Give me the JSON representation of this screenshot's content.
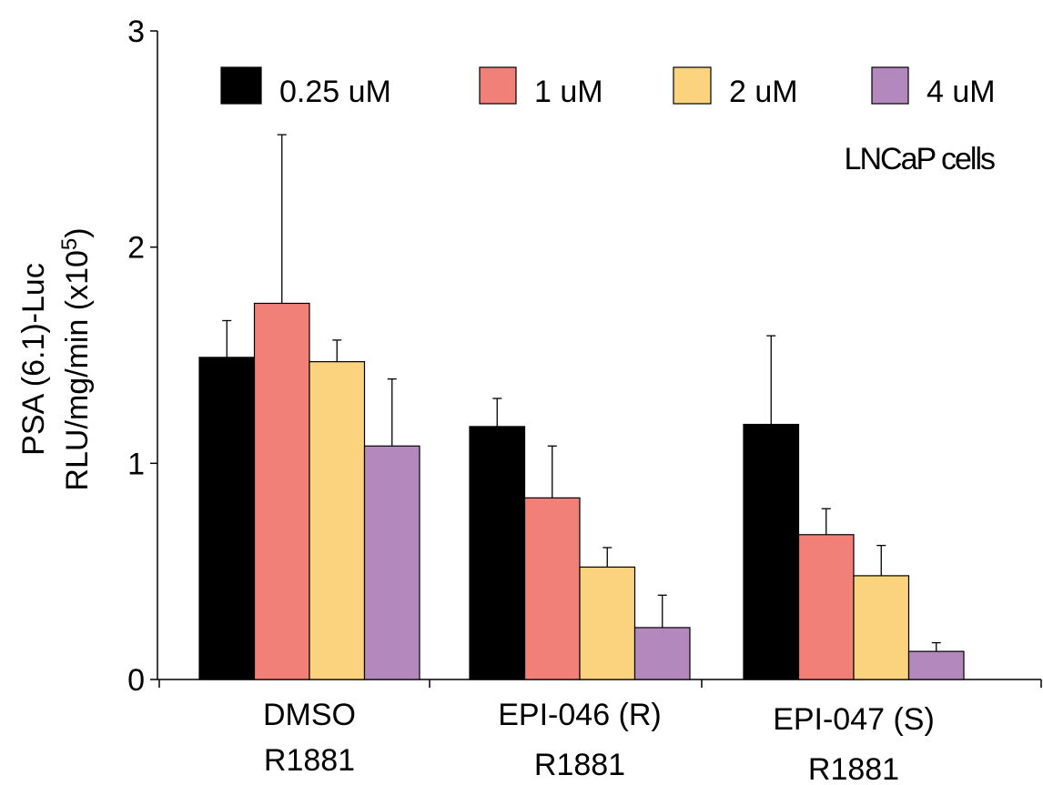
{
  "chart_data": {
    "type": "bar",
    "categories": [
      [
        "DMSO",
        "R1881"
      ],
      [
        "EPI-046 (R)",
        "R1881"
      ],
      [
        "EPI-047 (S)",
        "R1881"
      ]
    ],
    "series": [
      {
        "name": "0.25 uM",
        "color": "#000000",
        "values": [
          1.49,
          1.17,
          1.18
        ],
        "errors": [
          0.17,
          0.13,
          0.41
        ]
      },
      {
        "name": "1 uM",
        "color": "#f08078",
        "values": [
          1.74,
          0.84,
          0.67
        ],
        "errors": [
          0.78,
          0.24,
          0.12
        ]
      },
      {
        "name": "2 uM",
        "color": "#fbd27e",
        "values": [
          1.47,
          0.52,
          0.48
        ],
        "errors": [
          0.1,
          0.09,
          0.14
        ]
      },
      {
        "name": "4 uM",
        "color": "#b388bd",
        "values": [
          1.08,
          0.24,
          0.13
        ],
        "errors": [
          0.31,
          0.15,
          0.04
        ]
      }
    ],
    "ylabel_line1": "PSA (6.1)-Luc",
    "ylabel_line2_base": "RLU/mg/min (x10",
    "ylabel_line2_sup": "5",
    "ylabel_line2_end": ")",
    "yticks": [
      "0",
      "1",
      "2",
      "3"
    ],
    "ylim": [
      0,
      3
    ],
    "annotation": "LNCaP cells",
    "grid": false,
    "legend_position": "top"
  }
}
